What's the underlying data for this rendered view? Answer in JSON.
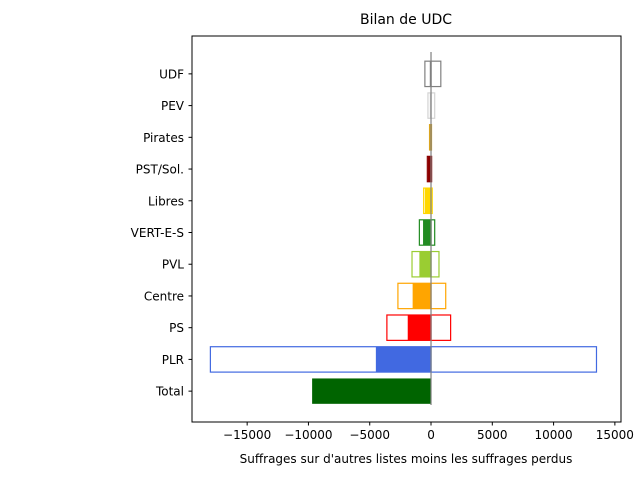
{
  "chart_data": {
    "type": "bar",
    "orientation": "horizontal",
    "title": "Bilan de UDC",
    "xlabel": "Suffrages sur d'autres listes moins les suffrages perdus",
    "ylabel": "",
    "xlim": [
      -19500,
      15500
    ],
    "xticks": [
      -15000,
      -10000,
      -5000,
      0,
      5000,
      10000,
      15000
    ],
    "xtick_labels": [
      "−15000",
      "−10000",
      "−5000",
      "0",
      "5000",
      "10000",
      "15000"
    ],
    "grid": false,
    "categories": [
      "Total",
      "PLR",
      "PS",
      "Centre",
      "PVL",
      "VERT-E-S",
      "Libres",
      "PST/Sol.",
      "Pirates",
      "PEV",
      "UDF"
    ],
    "colors": [
      "#006400",
      "#4169E1",
      "#FF0000",
      "#FFA500",
      "#9ACD32",
      "#228B22",
      "#FFD700",
      "#8B0000",
      "#DAA520",
      "#D3D3D3",
      "#808080"
    ],
    "series": [
      {
        "style": "filled",
        "values": [
          -9700,
          -4500,
          -1900,
          -1500,
          -950,
          -650,
          -500,
          -250,
          -80,
          -100,
          -100
        ]
      },
      {
        "style": "outline-lost",
        "values": [
          0,
          -18000,
          -3600,
          -2700,
          -1550,
          -950,
          -600,
          -300,
          -120,
          -250,
          -500
        ]
      },
      {
        "style": "outline-gained",
        "values": [
          0,
          13500,
          1600,
          1200,
          650,
          300,
          100,
          50,
          40,
          300,
          800
        ]
      }
    ]
  }
}
